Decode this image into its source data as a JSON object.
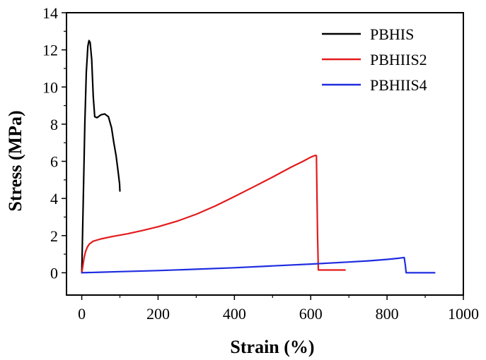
{
  "chart_data": {
    "type": "line",
    "xlabel": "Strain (%)",
    "ylabel": "Stress (MPa)",
    "xlim": [
      -40,
      1000
    ],
    "ylim": [
      -1.2,
      14
    ],
    "xticks": [
      0,
      200,
      400,
      600,
      800,
      1000
    ],
    "yticks": [
      0,
      2,
      4,
      6,
      8,
      10,
      12,
      14
    ],
    "grid": false,
    "legend_position": "top-right",
    "series": [
      {
        "name": "PBHIS",
        "color": "#000000",
        "x": [
          0,
          3,
          8,
          12,
          16,
          19,
          22,
          26,
          30,
          34,
          40,
          50,
          60,
          70,
          78,
          84,
          90,
          95,
          99,
          100
        ],
        "y": [
          0,
          3,
          8,
          10.8,
          12.2,
          12.5,
          12.4,
          11.5,
          9.5,
          8.4,
          8.35,
          8.5,
          8.55,
          8.4,
          7.8,
          7.0,
          6.3,
          5.5,
          4.8,
          4.4
        ]
      },
      {
        "name": "PBHIIS2",
        "color": "#e31a1c",
        "x": [
          0,
          3,
          6,
          10,
          15,
          20,
          30,
          50,
          80,
          120,
          160,
          200,
          250,
          300,
          350,
          400,
          450,
          500,
          550,
          580,
          600,
          612,
          615,
          618,
          620,
          650,
          690
        ],
        "y": [
          0,
          0.4,
          0.8,
          1.15,
          1.4,
          1.55,
          1.7,
          1.82,
          1.95,
          2.1,
          2.28,
          2.48,
          2.78,
          3.15,
          3.6,
          4.1,
          4.62,
          5.15,
          5.7,
          6.0,
          6.22,
          6.32,
          6.3,
          2.0,
          0.15,
          0.15,
          0.15
        ]
      },
      {
        "name": "PBHIIS4",
        "color": "#1f2de0",
        "x": [
          0,
          50,
          100,
          200,
          300,
          400,
          500,
          600,
          700,
          750,
          800,
          830,
          845,
          848,
          850,
          870,
          900,
          925
        ],
        "y": [
          0,
          0.03,
          0.06,
          0.12,
          0.19,
          0.27,
          0.37,
          0.47,
          0.58,
          0.64,
          0.72,
          0.78,
          0.82,
          0.4,
          0,
          0,
          0,
          0
        ]
      }
    ]
  }
}
